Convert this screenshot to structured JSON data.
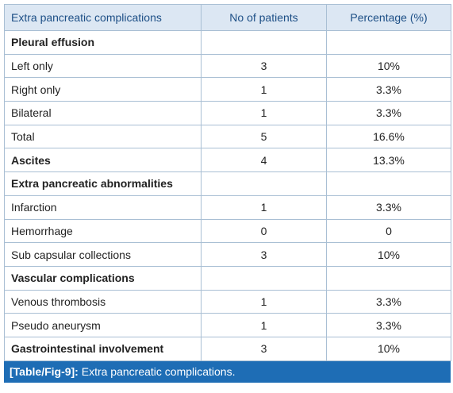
{
  "table": {
    "header": [
      "Extra pancreatic complications",
      "No of patients",
      "Percentage (%)"
    ],
    "rows": [
      {
        "label": "Pleural effusion",
        "bold": true
      },
      {
        "label": "Left only",
        "patients": 3,
        "percent": "10%"
      },
      {
        "label": "Right only",
        "patients": 1,
        "percent": "3.3%"
      },
      {
        "label": "Bilateral",
        "patients": 1,
        "percent": "3.3%"
      },
      {
        "label": "Total",
        "patients": 5,
        "percent": "16.6%"
      },
      {
        "label": "Ascites",
        "bold": true,
        "patients": 4,
        "percent": "13.3%"
      },
      {
        "label": "Extra pancreatic abnormalities",
        "bold": true
      },
      {
        "label": "Infarction",
        "patients": 1,
        "percent": "3.3%"
      },
      {
        "label": "Hemorrhage",
        "patients": 0,
        "percent": "0"
      },
      {
        "label": "Sub capsular collections",
        "patients": 3,
        "percent": "10%"
      },
      {
        "label": "Vascular complications",
        "bold": true
      },
      {
        "label": "Venous thrombosis",
        "patients": 1,
        "percent": "3.3%"
      },
      {
        "label": "Pseudo aneurysm",
        "patients": 1,
        "percent": "3.3%"
      },
      {
        "label": "Gastrointestinal involvement",
        "bold": true,
        "patients": 3,
        "percent": "10%"
      }
    ]
  },
  "caption": {
    "label": "[Table/Fig-9]:",
    "text": "Extra pancreatic complications."
  }
}
